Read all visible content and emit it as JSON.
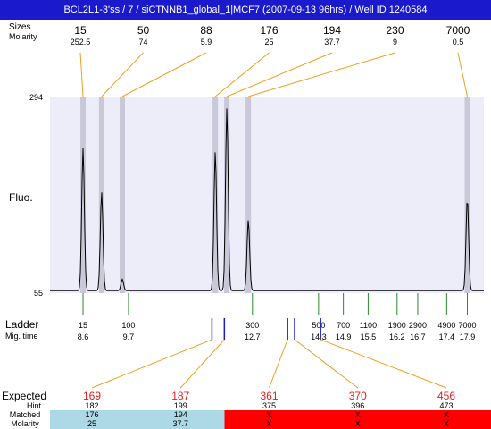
{
  "window": {
    "title": "BCL2L1-3'ss / 7 / siCTNNB1_global_1|MCF7 (2007-09-13 96hrs) / Well ID 1240584"
  },
  "colors": {
    "title_bar": "#1a1acc",
    "plot_bg": "#ededfa",
    "peak_band": "#c8c8d8",
    "orange_line": "#f0a020",
    "green_tick": "#2a8a2a",
    "expected_red": "#e02020",
    "blue_marker": "#1a1acc",
    "matched_bg": "#add8e6",
    "unmatched_bg": "#ff0000"
  },
  "labels": {
    "size_row": "Sizes",
    "molarity_row": "Molarity",
    "y_axis": "Fluo.",
    "ladder": "Ladder",
    "mig_time": "Mig. time",
    "expected": "Expected",
    "hint": "Hint",
    "matched": "Matched",
    "molarity_bottom": "Molarity"
  },
  "chart_data": {
    "type": "line",
    "ylabel": "Fluo.",
    "ylim": [
      55,
      294
    ],
    "yticks": [
      "294",
      "55"
    ],
    "xlim": [
      7.8,
      18.3
    ],
    "trace": {
      "baseline": 58,
      "peaks": [
        {
          "time": 8.6,
          "height": 231
        },
        {
          "time": 9.05,
          "height": 178
        },
        {
          "time": 9.55,
          "height": 72
        },
        {
          "time": 11.8,
          "height": 227
        },
        {
          "time": 12.08,
          "height": 280
        },
        {
          "time": 12.6,
          "height": 144
        },
        {
          "time": 17.9,
          "height": 170
        }
      ]
    },
    "peaks_top": [
      {
        "size": "15",
        "molarity": "252.5",
        "time": 8.6
      },
      {
        "size": "50",
        "molarity": "74",
        "time": 9.05
      },
      {
        "size": "88",
        "molarity": "5.9",
        "time": 9.55
      },
      {
        "size": "176",
        "molarity": "25",
        "time": 11.8
      },
      {
        "size": "194",
        "molarity": "37.7",
        "time": 12.08
      },
      {
        "size": "230",
        "molarity": "9",
        "time": 12.6
      },
      {
        "size": "7000",
        "molarity": "0.5",
        "time": 17.9
      }
    ],
    "ladder": [
      {
        "size": "15",
        "time": "8.6",
        "t": 8.6
      },
      {
        "size": "100",
        "time": "9.7",
        "t": 9.7
      },
      {
        "size": "300",
        "time": "12.7",
        "t": 12.7
      },
      {
        "size": "500",
        "time": "14.3",
        "t": 14.3
      },
      {
        "size": "700",
        "time": "14.9",
        "t": 14.9
      },
      {
        "size": "1100",
        "time": "15.5",
        "t": 15.5
      },
      {
        "size": "1900",
        "time": "16.2",
        "t": 16.2
      },
      {
        "size": "2900",
        "time": "16.7",
        "t": 16.7
      },
      {
        "size": "4900",
        "time": "17.4",
        "t": 17.4
      },
      {
        "size": "7000",
        "time": "17.9",
        "t": 17.9
      }
    ],
    "expected": [
      {
        "expected": "169",
        "hint": "182",
        "matched": "176",
        "molarity": "25",
        "status": "matched",
        "marker_time": 11.72
      },
      {
        "expected": "187",
        "hint": "199",
        "matched": "194",
        "molarity": "37.7",
        "status": "matched",
        "marker_time": 12.02
      },
      {
        "expected": "361",
        "hint": "375",
        "matched": "X",
        "molarity": "X",
        "status": "unmatched",
        "marker_time": 13.55
      },
      {
        "expected": "370",
        "hint": "396",
        "matched": "X",
        "molarity": "X",
        "status": "unmatched",
        "marker_time": 13.72
      },
      {
        "expected": "456",
        "hint": "473",
        "matched": "X",
        "molarity": "X",
        "status": "unmatched",
        "marker_time": 14.35
      }
    ]
  }
}
